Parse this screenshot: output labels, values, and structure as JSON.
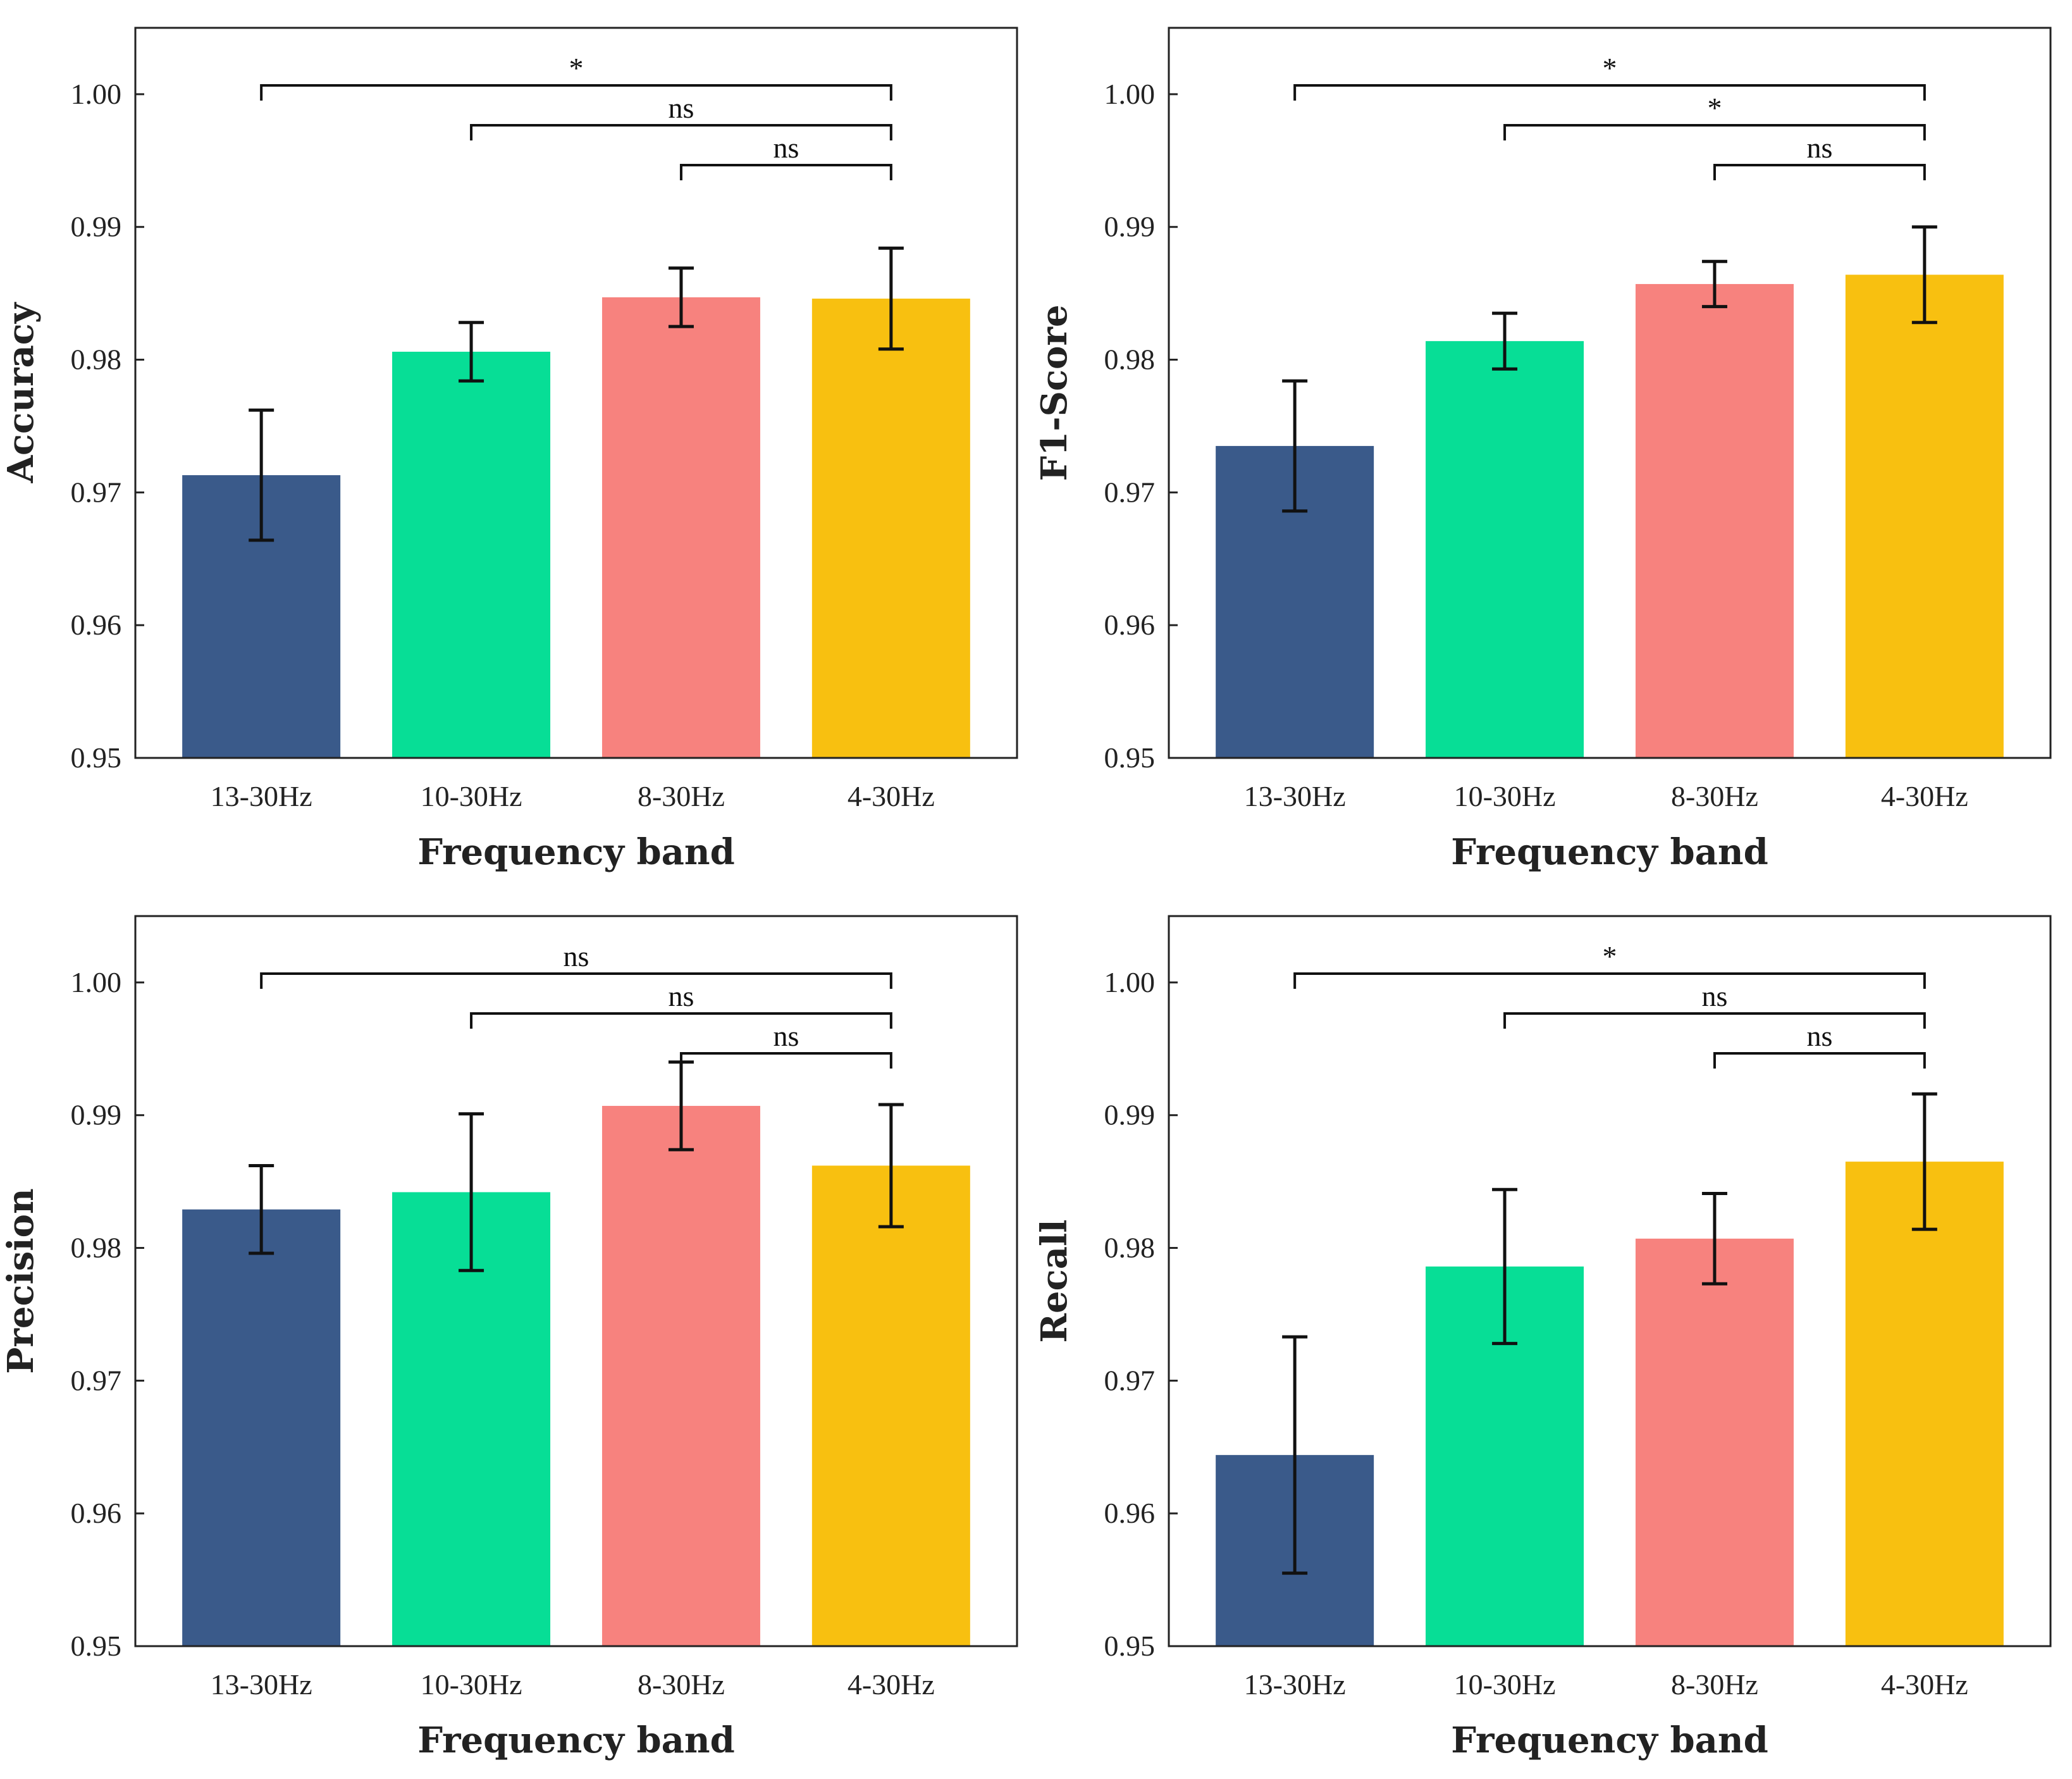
{
  "chart_data": [
    {
      "type": "bar",
      "panel": "top-left",
      "categories": [
        "13-30Hz",
        "10-30Hz",
        "8-30Hz",
        "4-30Hz"
      ],
      "values": [
        0.9713,
        0.9806,
        0.9847,
        0.9846
      ],
      "errors": [
        0.0049,
        0.0022,
        0.0022,
        0.0038
      ],
      "colors": [
        "#3a5a8a",
        "#07de96",
        "#f7827e",
        "#f8c010"
      ],
      "xlabel": "Frequency band",
      "ylabel": "Accuracy",
      "ylim": [
        0.95,
        1.005
      ],
      "yticks": [
        "0.95",
        "0.96",
        "0.97",
        "0.98",
        "0.99",
        "1.00"
      ],
      "significance": [
        {
          "from": 0,
          "to": 3,
          "label": "*"
        },
        {
          "from": 1,
          "to": 3,
          "label": "ns"
        },
        {
          "from": 2,
          "to": 3,
          "label": "ns"
        }
      ]
    },
    {
      "type": "bar",
      "panel": "top-right",
      "categories": [
        "13-30Hz",
        "10-30Hz",
        "8-30Hz",
        "4-30Hz"
      ],
      "values": [
        0.9735,
        0.9814,
        0.9857,
        0.9864
      ],
      "errors": [
        0.0049,
        0.0021,
        0.0017,
        0.0036
      ],
      "colors": [
        "#3a5a8a",
        "#07de96",
        "#f7827e",
        "#f8c010"
      ],
      "xlabel": "Frequency band",
      "ylabel": "F1-Score",
      "ylim": [
        0.95,
        1.005
      ],
      "yticks": [
        "0.95",
        "0.96",
        "0.97",
        "0.98",
        "0.99",
        "1.00"
      ],
      "significance": [
        {
          "from": 0,
          "to": 3,
          "label": "*"
        },
        {
          "from": 1,
          "to": 3,
          "label": "*"
        },
        {
          "from": 2,
          "to": 3,
          "label": "ns"
        }
      ]
    },
    {
      "type": "bar",
      "panel": "bottom-left",
      "categories": [
        "13-30Hz",
        "10-30Hz",
        "8-30Hz",
        "4-30Hz"
      ],
      "values": [
        0.9829,
        0.9842,
        0.9907,
        0.9862
      ],
      "errors": [
        0.0033,
        0.0059,
        0.0033,
        0.0046
      ],
      "colors": [
        "#3a5a8a",
        "#07de96",
        "#f7827e",
        "#f8c010"
      ],
      "xlabel": "Frequency band",
      "ylabel": "Precision",
      "ylim": [
        0.95,
        1.005
      ],
      "yticks": [
        "0.95",
        "0.96",
        "0.97",
        "0.98",
        "0.99",
        "1.00"
      ],
      "significance": [
        {
          "from": 0,
          "to": 3,
          "label": "ns"
        },
        {
          "from": 1,
          "to": 3,
          "label": "ns"
        },
        {
          "from": 2,
          "to": 3,
          "label": "ns"
        }
      ]
    },
    {
      "type": "bar",
      "panel": "bottom-right",
      "categories": [
        "13-30Hz",
        "10-30Hz",
        "8-30Hz",
        "4-30Hz"
      ],
      "values": [
        0.9644,
        0.9786,
        0.9807,
        0.9865
      ],
      "errors": [
        0.0089,
        0.0058,
        0.0034,
        0.0051
      ],
      "colors": [
        "#3a5a8a",
        "#07de96",
        "#f7827e",
        "#f8c010"
      ],
      "xlabel": "Frequency band",
      "ylabel": "Recall",
      "ylim": [
        0.95,
        1.005
      ],
      "yticks": [
        "0.95",
        "0.96",
        "0.97",
        "0.98",
        "0.99",
        "1.00"
      ],
      "significance": [
        {
          "from": 0,
          "to": 3,
          "label": "*"
        },
        {
          "from": 1,
          "to": 3,
          "label": "ns"
        },
        {
          "from": 2,
          "to": 3,
          "label": "ns"
        }
      ]
    }
  ]
}
